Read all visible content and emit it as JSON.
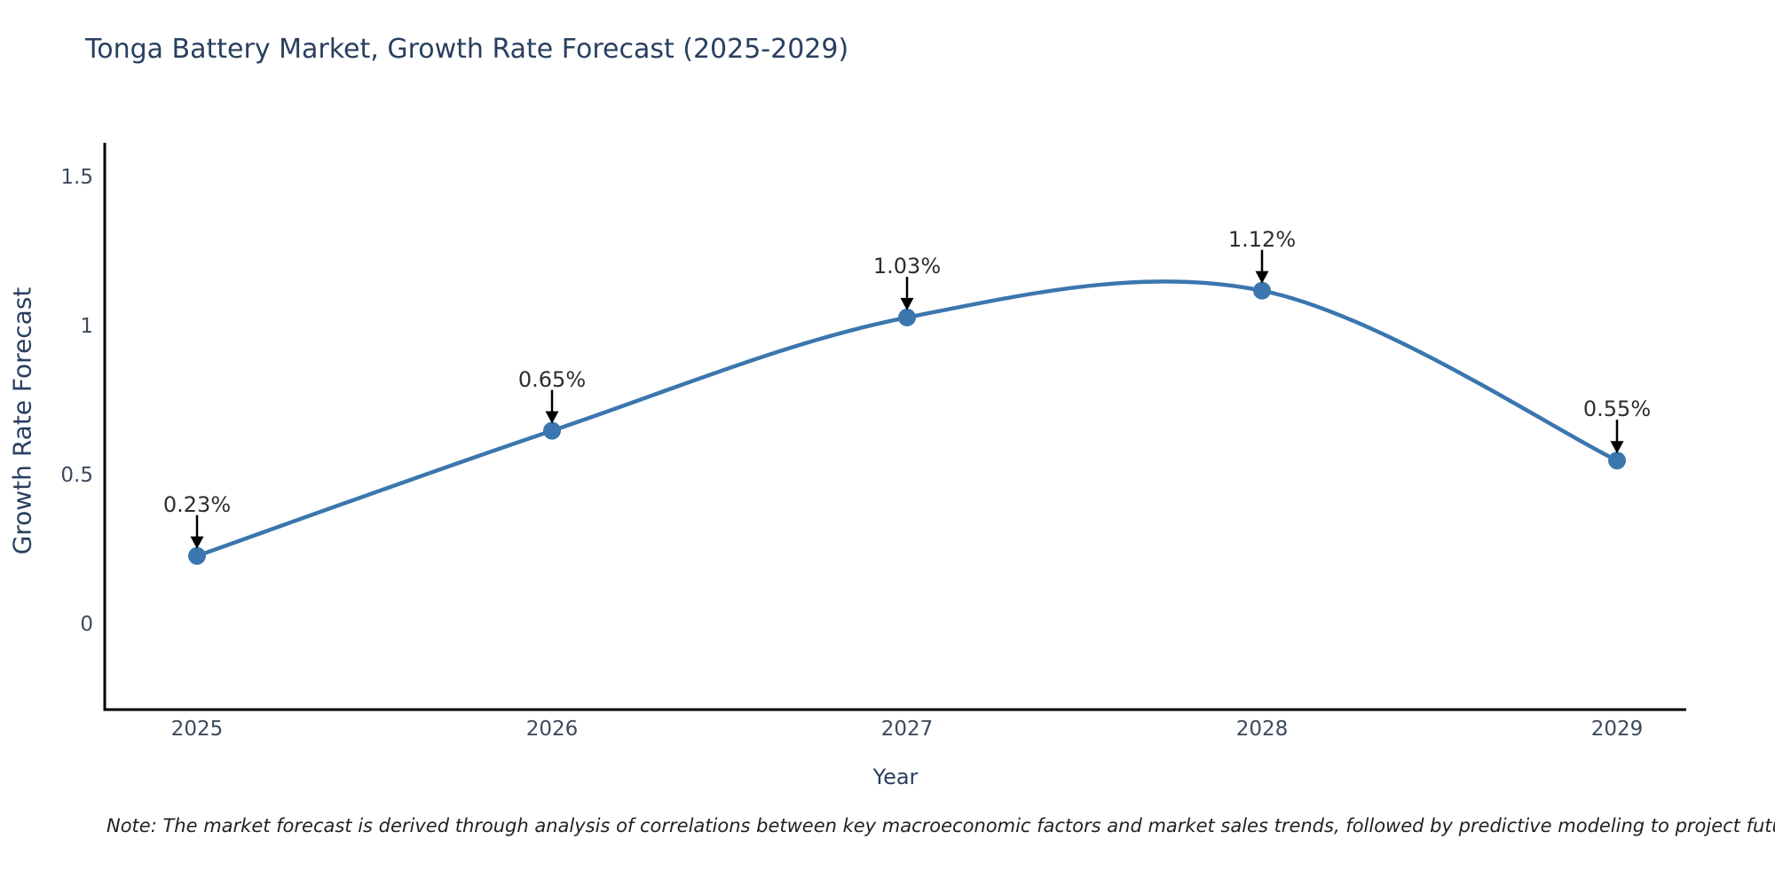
{
  "title": "Tonga Battery Market, Growth Rate Forecast (2025-2029)",
  "note": "Note: The market forecast is derived through analysis of correlations between key macroeconomic factors and market sales trends, followed by predictive modeling to project future sales",
  "colors": {
    "line": "#3b76ae",
    "marker": "#3b76ae",
    "arrow": "#000000",
    "axis_line": "#000000",
    "title_text": "#2a3f5f",
    "tick_text": "#3d4a5c",
    "annotation_text": "#2e2e2e",
    "background": "#ffffff"
  },
  "chart_data": {
    "type": "line",
    "title": "Tonga Battery Market, Growth Rate Forecast (2025-2029)",
    "xlabel": "Year",
    "ylabel": "Growth Rate Forecast",
    "x": [
      2025,
      2026,
      2027,
      2028,
      2029
    ],
    "values": [
      0.23,
      0.65,
      1.03,
      1.12,
      0.55
    ],
    "annotations": [
      "0.23%",
      "0.65%",
      "1.03%",
      "1.12%",
      "0.55%"
    ],
    "x_tick_labels": [
      "2025",
      "2026",
      "2027",
      "2028",
      "2029"
    ],
    "y_tick_values": [
      0,
      0.5,
      1,
      1.5
    ],
    "y_tick_labels": [
      "0",
      "0.5",
      "1",
      "1.5"
    ],
    "ylim": [
      -0.29,
      1.62
    ],
    "xlim": [
      2024.74,
      2029.2
    ],
    "grid": false,
    "legend": false,
    "line_shape": "spline",
    "markers": true
  }
}
